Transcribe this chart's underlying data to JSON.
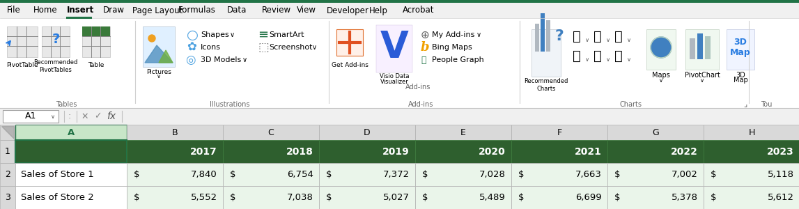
{
  "ribbon_bg": "#f0f0f0",
  "ribbon_white": "#ffffff",
  "green_top_border": "#217346",
  "green_dark": "#2e5f2e",
  "green_medium": "#3a7a3a",
  "menu_items": [
    "File",
    "Home",
    "Insert",
    "Draw",
    "Page Layout",
    "Formulas",
    "Data",
    "Review",
    "View",
    "Developer",
    "Help",
    "Acrobat"
  ],
  "active_menu": "Insert",
  "formula_bar_text": "A1",
  "col_header_bg": "#d9d9d9",
  "col_header_selected_bg": "#c8e6c8",
  "header_row_bg": "#2e5f2e",
  "header_row_text_color": "#ffffff",
  "data_row_bg": "#eaf5ea",
  "col_labels": [
    "A",
    "B",
    "C",
    "D",
    "E",
    "F",
    "G",
    "H"
  ],
  "years": [
    "2017",
    "2018",
    "2019",
    "2020",
    "2021",
    "2022",
    "2023"
  ],
  "row2_label": "Sales of Store 1",
  "row3_label": "Sales of Store 2",
  "store1_values": [
    "$ 7,840",
    "$ 6,754",
    "$ 7,372",
    "$ 7,028",
    "$ 7,663",
    "$ 7,002",
    "$ 5,118"
  ],
  "store2_values": [
    "$ 5,552",
    "$ 7,038",
    "$ 5,027",
    "$ 5,489",
    "$ 6,699",
    "$ 5,378",
    "$ 5,612"
  ]
}
